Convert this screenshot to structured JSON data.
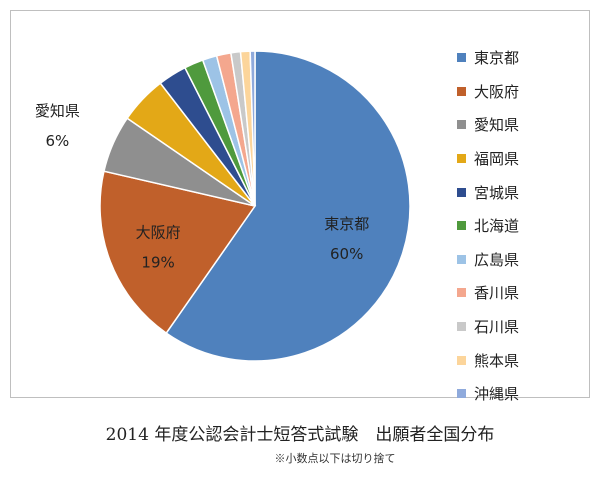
{
  "chart_data": {
    "type": "pie",
    "slices": [
      {
        "label": "東京都",
        "value": 60,
        "color": "#4f81bd",
        "show_label": true,
        "show_percent": true
      },
      {
        "label": "大阪府",
        "value": 19,
        "color": "#c0602b",
        "show_label": true,
        "show_percent": true
      },
      {
        "label": "愛知県",
        "value": 6,
        "color": "#8f8f8f",
        "show_label": true,
        "show_percent": true
      },
      {
        "label": "福岡県",
        "value": 5,
        "color": "#e3a817",
        "show_label": false,
        "show_percent": false
      },
      {
        "label": "宮城県",
        "value": 3,
        "color": "#2e4d8f",
        "show_label": false,
        "show_percent": false
      },
      {
        "label": "北海道",
        "value": 2,
        "color": "#4f9a3d",
        "show_label": false,
        "show_percent": false
      },
      {
        "label": "広島県",
        "value": 1.5,
        "color": "#9dc3e6",
        "show_label": false,
        "show_percent": false
      },
      {
        "label": "香川県",
        "value": 1.5,
        "color": "#f4a78e",
        "show_label": false,
        "show_percent": false
      },
      {
        "label": "石川県",
        "value": 1,
        "color": "#c9c9c9",
        "show_label": false,
        "show_percent": false
      },
      {
        "label": "熊本県",
        "value": 1,
        "color": "#fcd59b",
        "show_label": false,
        "show_percent": false
      },
      {
        "label": "沖縄県",
        "value": 0.5,
        "color": "#8faadc",
        "show_label": false,
        "show_percent": false
      }
    ],
    "legend_position": "right",
    "title": ""
  },
  "caption": {
    "title": "2014 年度公認会計士短答式試験　出願者全国分布",
    "note": "※小数点以下は切り捨て"
  }
}
